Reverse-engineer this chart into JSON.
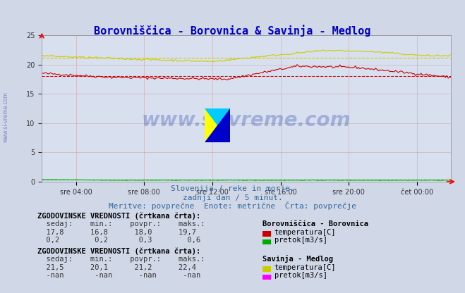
{
  "title": "Borovniščica - Borovnica & Savinja - Medlog",
  "title_color": "#0000cc",
  "bg_color": "#d0d8e8",
  "plot_bg_color": "#d8e0f0",
  "xlabel_ticks": [
    "sre 04:00",
    "sre 08:00",
    "sre 12:00",
    "sre 16:00",
    "sre 20:00",
    "čet 00:00"
  ],
  "ylim": [
    0,
    25
  ],
  "yticks": [
    0,
    5,
    10,
    15,
    20,
    25
  ],
  "grid_color": "#c8a0a0",
  "n_points": 288,
  "borovnica_temp_avg": 18.0,
  "borovnica_flow_avg": 0.3,
  "savinja_temp_avg": 21.2,
  "color_borovnica_temp": "#cc0000",
  "color_borovnica_flow": "#00aa00",
  "color_savinja_temp": "#cccc00",
  "color_savinja_flow": "#ff00ff",
  "watermark": "www.si-vreme.com",
  "subtitle1": "Slovenija / reke in morje.",
  "subtitle2": "zadnji dan / 5 minut.",
  "subtitle3": "Meritve: povprečne  Enote: metrične  Črta: povprečje",
  "legend_title": "ZGODOVINSKE VREDNOSTI (črtkana črta):",
  "station1_name": "Borovniščica - Borovnica",
  "station2_name": "Savinja - Medlog"
}
